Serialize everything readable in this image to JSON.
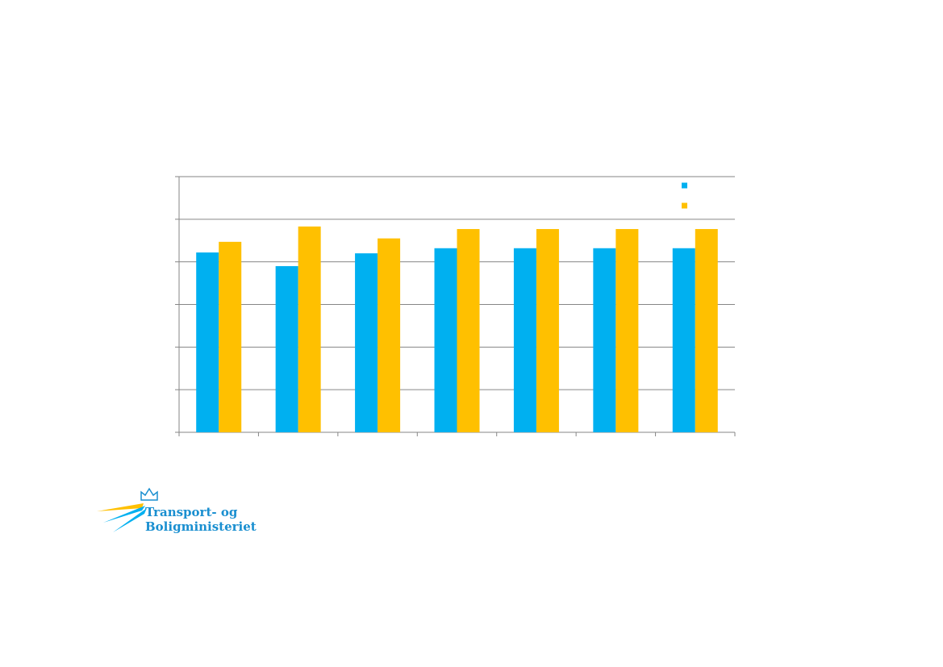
{
  "chart_data": {
    "type": "bar",
    "categories": [
      null,
      null,
      null,
      null,
      null,
      null,
      null
    ],
    "series": [
      {
        "color": "#00b0f0",
        "values": [
          4.22,
          3.9,
          4.2,
          4.32,
          4.32,
          4.32,
          4.32
        ]
      },
      {
        "color": "#ffc000",
        "values": [
          4.47,
          4.83,
          4.55,
          4.77,
          4.77,
          4.77,
          4.77
        ]
      }
    ],
    "ylim": [
      0,
      6
    ],
    "yticks": [
      0,
      1,
      2,
      3,
      4,
      5,
      6
    ],
    "grid": true,
    "legend": "top-right"
  },
  "logo": {
    "lines": [
      "Transport- og",
      "Boligministeriet"
    ]
  }
}
